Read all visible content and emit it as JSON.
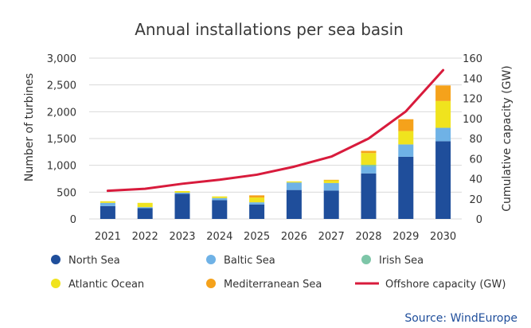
{
  "chart_data": {
    "type": "bar",
    "stacked": true,
    "title": "Annual installations per sea basin",
    "categories": [
      "2021",
      "2022",
      "2023",
      "2024",
      "2025",
      "2026",
      "2027",
      "2028",
      "2029",
      "2030"
    ],
    "ylabel": "Number of turbines",
    "y2label": "Cumulative capacity (GW)",
    "ylim": [
      0,
      3000
    ],
    "y2lim": [
      0,
      160
    ],
    "yticks": [
      0,
      500,
      1000,
      1500,
      2000,
      2500,
      3000
    ],
    "ytick_labels": [
      "0",
      "500",
      "1,000",
      "1,500",
      "2,000",
      "2,500",
      "3,000"
    ],
    "y2ticks": [
      0,
      20,
      40,
      60,
      80,
      100,
      120,
      140,
      160
    ],
    "grid": true,
    "legend_position": "bottom",
    "series": [
      {
        "name": "North Sea",
        "color": "#1f4e9b",
        "values": [
          240,
          200,
          470,
          350,
          270,
          540,
          530,
          850,
          1160,
          1450
        ]
      },
      {
        "name": "Baltic Sea",
        "color": "#6fb2e6",
        "values": [
          60,
          20,
          20,
          40,
          40,
          140,
          140,
          130,
          230,
          250
        ]
      },
      {
        "name": "Irish Sea",
        "color": "#7dc6a8",
        "values": [
          0,
          0,
          0,
          0,
          0,
          0,
          0,
          30,
          0,
          0
        ]
      },
      {
        "name": "Atlantic Ocean",
        "color": "#f0e31e",
        "values": [
          30,
          80,
          30,
          30,
          90,
          20,
          50,
          220,
          250,
          500
        ]
      },
      {
        "name": "Mediterranean Sea",
        "color": "#f5a21b",
        "values": [
          0,
          0,
          0,
          0,
          40,
          0,
          10,
          40,
          220,
          290
        ]
      }
    ],
    "line_series": {
      "name": "Offshore capacity (GW)",
      "color": "#d81b3c",
      "axis": "right",
      "values": [
        28,
        30,
        35,
        39,
        44,
        52,
        62,
        80,
        107,
        148
      ]
    },
    "source": "Source: WindEurope"
  }
}
